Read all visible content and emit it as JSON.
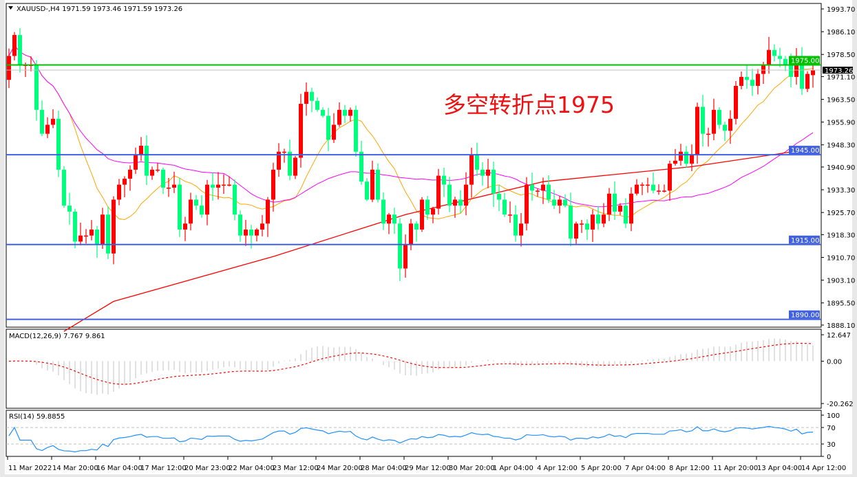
{
  "header": {
    "symbol_line": "XAUUSD-,H4  1971.59 1973.46 1971.59 1973.26"
  },
  "annotation": "多空转折点1975",
  "colors": {
    "bull_candle": "#ff0000",
    "bear_candle": "#00ff7f",
    "ma_short": "#ffa500",
    "ma_mid": "#ff00ff",
    "ma_long": "#ff0000",
    "resistance_line": "#00c000",
    "support_line": "#4060e0",
    "macd_hist": "#c0c0c0",
    "macd_signal": "#ff0000",
    "rsi": "#1e90ff"
  },
  "chart_data": [
    {
      "type": "candlestick",
      "title": "XAUUSD-,H4",
      "ohlc_last": {
        "open": 1971.59,
        "high": 1973.46,
        "low": 1971.59,
        "close": 1973.26
      },
      "y_ticks": [
        "1993.70",
        "1986.10",
        "1978.50",
        "1971.10",
        "1963.50",
        "1955.90",
        "1948.30",
        "1940.90",
        "1933.30",
        "1925.70",
        "1918.30",
        "1910.70",
        "1903.10",
        "1895.50",
        "1888.10"
      ],
      "ylim": [
        1888.1,
        1993.7
      ],
      "x_ticks": [
        "11 Mar 2022",
        "14 Mar 20:00",
        "16 Mar 04:00",
        "17 Mar 12:00",
        "20 Mar 23:00",
        "22 Mar 04:00",
        "23 Mar 12:00",
        "24 Mar 20:00",
        "28 Mar 04:00",
        "29 Mar 12:00",
        "30 Mar 20:00",
        "1 Apr 04:00",
        "4 Apr 12:00",
        "5 Apr 20:00",
        "7 Apr 04:00",
        "8 Apr 12:00",
        "11 Apr 20:00",
        "13 Apr 04:00",
        "14 Apr 12:00"
      ],
      "closes": [
        1978,
        1985,
        1975,
        1975,
        1975,
        1960,
        1952,
        1955,
        1957,
        1940,
        1928,
        1926,
        1916,
        1918,
        1918,
        1920,
        1915,
        1925,
        1912,
        1930,
        1935,
        1937,
        1940,
        1945,
        1948,
        1938,
        1940,
        1940,
        1934,
        1934,
        1935,
        1920,
        1922,
        1930,
        1928,
        1925,
        1935,
        1934,
        1935,
        1935,
        1935,
        1925,
        1918,
        1920,
        1918,
        1920,
        1922,
        1930,
        1940,
        1946,
        1946,
        1938,
        1944,
        1962,
        1966,
        1963,
        1960,
        1958,
        1950,
        1955,
        1960,
        1958,
        1960,
        1946,
        1936,
        1930,
        1940,
        1930,
        1922,
        1925,
        1922,
        1907,
        1915,
        1922,
        1920,
        1930,
        1925,
        1927,
        1938,
        1935,
        1928,
        1930,
        1928,
        1935,
        1945,
        1940,
        1938,
        1940,
        1932,
        1930,
        1925,
        1925,
        1918,
        1922,
        1935,
        1933,
        1933,
        1935,
        1930,
        1928,
        1930,
        1928,
        1917,
        1922,
        1922,
        1920,
        1925,
        1922,
        1925,
        1932,
        1926,
        1928,
        1922,
        1932,
        1935,
        1935,
        1935,
        1933,
        1933,
        1933,
        1942,
        1943,
        1946,
        1942,
        1945,
        1961,
        1952,
        1952,
        1960,
        1955,
        1953,
        1957,
        1968,
        1971,
        1970,
        1968,
        1972,
        1975,
        1980,
        1978,
        1977,
        1975,
        1971,
        1978,
        1967,
        1972,
        1973.26
      ],
      "moving_average_long": [
        [
          10,
          1886
        ],
        [
          19,
          1896
        ],
        [
          48,
          1911
        ],
        [
          72,
          1925
        ],
        [
          97,
          1936
        ],
        [
          124,
          1941
        ],
        [
          146,
          1947
        ]
      ],
      "horizontal_lines": [
        {
          "label": "1975.00",
          "value": 1975.0,
          "color": "#00c000"
        },
        {
          "label": "1945.00",
          "value": 1945.0,
          "color": "#4060e0"
        },
        {
          "label": "1915.00",
          "value": 1915.0,
          "color": "#4060e0"
        },
        {
          "label": "1890.00",
          "value": 1890.0,
          "color": "#4060e0"
        }
      ],
      "current_price_label": "1973.26"
    },
    {
      "type": "bar",
      "title": "MACD(12,26,9) 7.767 9.861",
      "y_ticks": [
        "12.647",
        "0.00",
        "-20.262"
      ],
      "ylim": [
        -20.262,
        12.647
      ]
    },
    {
      "type": "line",
      "title": "RSI(14) 59.8855",
      "y_ticks": [
        "100",
        "70",
        "30",
        "0"
      ],
      "ylim": [
        0,
        100
      ],
      "levels": [
        70,
        30
      ]
    }
  ]
}
